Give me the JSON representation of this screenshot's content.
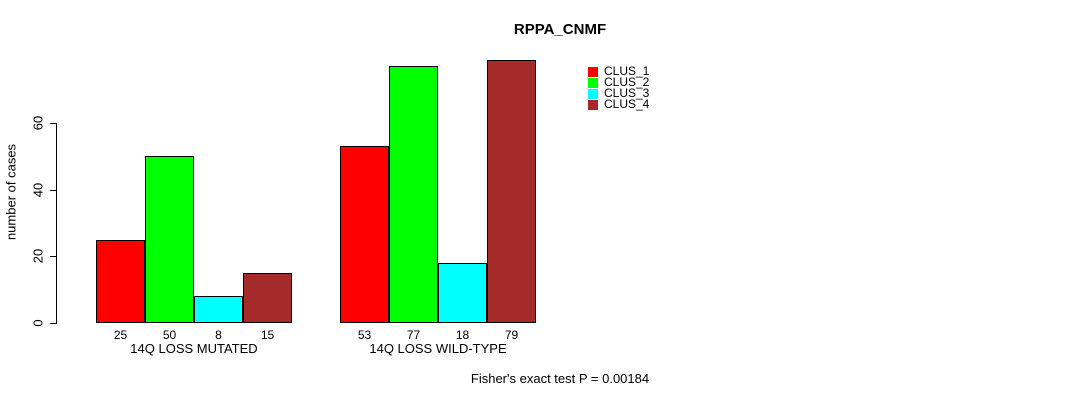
{
  "chart_data": {
    "type": "bar",
    "title": "RPPA_CNMF",
    "xlabel": "",
    "ylabel": "number of cases",
    "categories": [
      "14Q LOSS MUTATED",
      "14Q LOSS WILD-TYPE"
    ],
    "series": [
      {
        "name": "CLUS_1",
        "color": "#FF0000",
        "values": [
          25,
          53
        ]
      },
      {
        "name": "CLUS_2",
        "color": "#00FF00",
        "values": [
          50,
          77
        ]
      },
      {
        "name": "CLUS_3",
        "color": "#00FFFF",
        "values": [
          8,
          18
        ]
      },
      {
        "name": "CLUS_4",
        "color": "#A52A2A",
        "values": [
          15,
          79
        ]
      }
    ],
    "yticks": [
      0,
      20,
      40,
      60
    ],
    "ylim": [
      0,
      80
    ],
    "grid": false,
    "legend_position": "top-right",
    "bar_value_labels_shown": true
  },
  "annotation": "Fisher's exact test P = 0.00184",
  "colors": {
    "axis": "#000000",
    "bar_border": "#000000",
    "background": "#FFFFFF",
    "text": "#000000"
  }
}
